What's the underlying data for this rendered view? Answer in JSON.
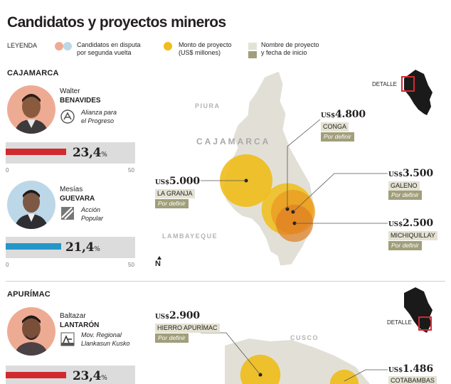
{
  "title": "Candidatos y proyectos mineros",
  "legend": {
    "label": "LEYENDA",
    "candidates": "Candidatos en disputa\npor segunda vuelta",
    "amount": "Monto de proyecto\n(US$ millones)",
    "project": "Nombre de proyecto\ny fecha de inicio",
    "colors": {
      "salmon": "#eeab93",
      "lightblue": "#bcd7e8",
      "gold": "#f0bd1a",
      "namebox": "#e4e2d2",
      "datebox": "#a19f7b"
    }
  },
  "regions": [
    {
      "name": "CAJAMARCA",
      "detalle": "DETALLE",
      "axis": {
        "min": "0",
        "max": "50",
        "max_value": 50
      },
      "candidates": [
        {
          "first": "Walter",
          "last": "BENAVIDES",
          "party": "Alianza para\nel Progreso",
          "party_icon": "alianza-logo-icon",
          "value": 23.4,
          "value_text": "23,4",
          "unit": "%",
          "color": "#d12a2f"
        },
        {
          "first": "Mesías",
          "last": "GUEVARA",
          "party": "Acción\nPopular",
          "party_icon": "accion-popular-logo-icon",
          "value": 21.4,
          "value_text": "21,4",
          "unit": "%",
          "color": "#2596c8"
        }
      ],
      "map_labels": {
        "piura": "PIURA",
        "cajamarca": "CAJAMARCA",
        "lambayeque": "LAMBAYEQUE",
        "north": "N"
      },
      "projects": [
        {
          "currency": "US$",
          "amount": "4.800",
          "value": 4800,
          "name": "CONGA",
          "start": "Por definir"
        },
        {
          "currency": "US$",
          "amount": "5.000",
          "value": 5000,
          "name": "LA GRANJA",
          "start": "Por definir"
        },
        {
          "currency": "US$",
          "amount": "3.500",
          "value": 3500,
          "name": "GALENO",
          "start": "Por definir"
        },
        {
          "currency": "US$",
          "amount": "2.500",
          "value": 2500,
          "name": "MICHIQUILLAY",
          "start": "Por definir"
        }
      ]
    },
    {
      "name": "APURÍMAC",
      "detalle": "DETALLE",
      "candidates": [
        {
          "first": "Baltazar",
          "last": "LANTARÓN",
          "party": "Mov. Regional\nLlankasun Kusko",
          "party_icon": "llankasun-logo-icon",
          "value": 23.4,
          "value_text": "23,4",
          "unit": "%",
          "color": "#d12a2f"
        }
      ],
      "map_labels": {
        "cusco": "CUSCO"
      },
      "projects": [
        {
          "currency": "US$",
          "amount": "2.900",
          "value": 2900,
          "name": "HIERRO APURÍMAC",
          "start": "Por definir"
        },
        {
          "currency": "US$",
          "amount": "1.486",
          "value": 1486,
          "name": "COTABAMBAS",
          "start": ""
        }
      ]
    }
  ]
}
